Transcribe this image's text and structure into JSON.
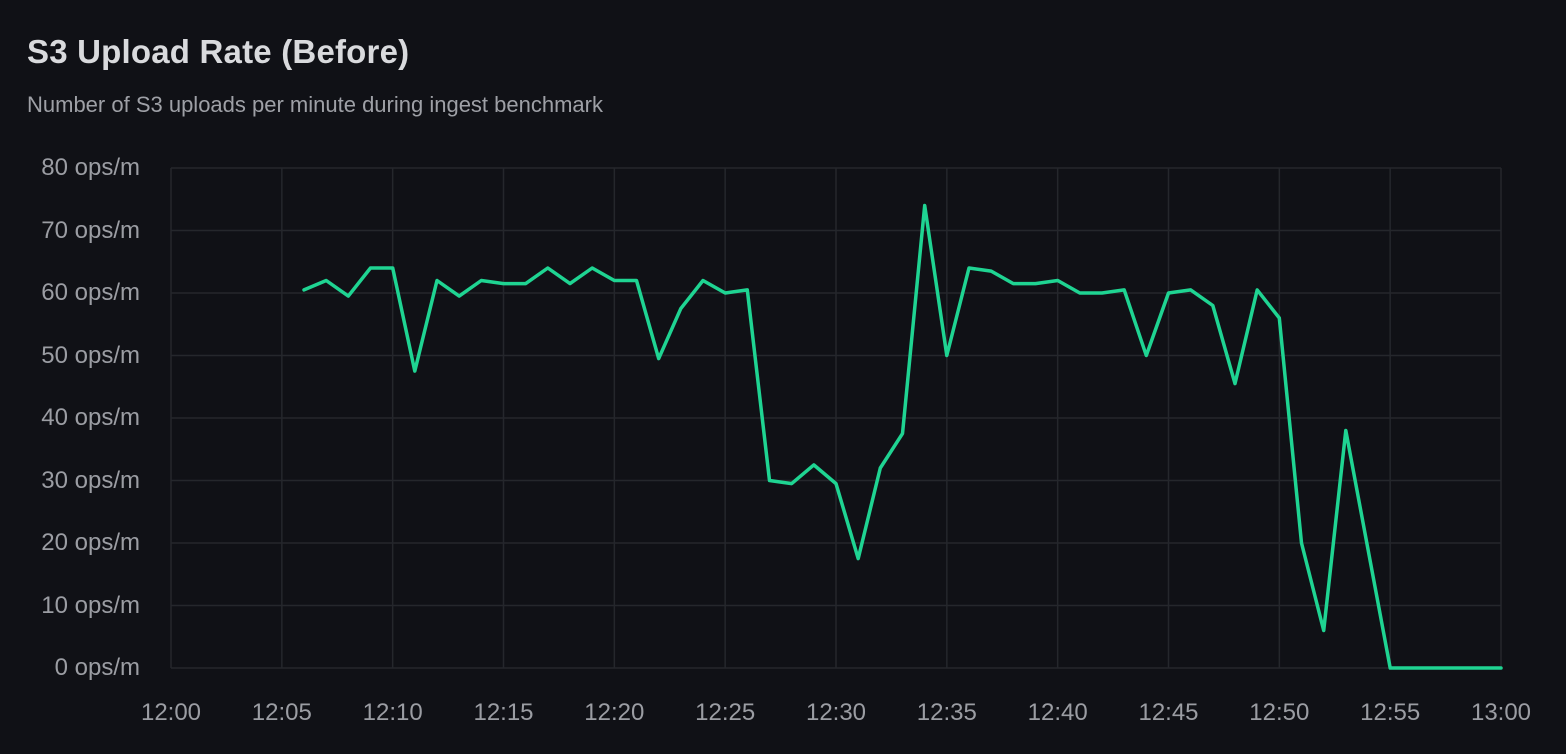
{
  "panel": {
    "title": "S3 Upload Rate (Before)",
    "subtitle": "Number of S3 uploads per minute during ingest benchmark"
  },
  "colors": {
    "background": "#101116",
    "grid": "#25272c",
    "line": "#1fd492",
    "title_text": "#d9dadd",
    "subtitle_text": "#9ea0a6",
    "tick_text": "#9b9da3"
  },
  "chart_data": {
    "type": "line",
    "title": "S3 Upload Rate (Before)",
    "subtitle": "Number of S3 uploads per minute during ingest benchmark",
    "unit": "ops/m",
    "grid": true,
    "legend": "none",
    "ylim": [
      0,
      80
    ],
    "xlim": [
      "12:00",
      "13:00"
    ],
    "y_ticks": [
      "0 ops/m",
      "10 ops/m",
      "20 ops/m",
      "30 ops/m",
      "40 ops/m",
      "50 ops/m",
      "60 ops/m",
      "70 ops/m",
      "80 ops/m"
    ],
    "x_ticks": [
      "12:00",
      "12:05",
      "12:10",
      "12:15",
      "12:20",
      "12:25",
      "12:30",
      "12:35",
      "12:40",
      "12:45",
      "12:50",
      "12:55",
      "13:00"
    ],
    "x": [
      "12:06",
      "12:07",
      "12:08",
      "12:09",
      "12:10",
      "12:11",
      "12:12",
      "12:13",
      "12:14",
      "12:15",
      "12:16",
      "12:17",
      "12:18",
      "12:19",
      "12:20",
      "12:21",
      "12:22",
      "12:23",
      "12:24",
      "12:25",
      "12:26",
      "12:27",
      "12:28",
      "12:29",
      "12:30",
      "12:31",
      "12:32",
      "12:33",
      "12:34",
      "12:35",
      "12:36",
      "12:37",
      "12:38",
      "12:39",
      "12:40",
      "12:41",
      "12:42",
      "12:43",
      "12:44",
      "12:45",
      "12:46",
      "12:47",
      "12:48",
      "12:49",
      "12:50",
      "12:51",
      "12:52",
      "12:53",
      "12:54",
      "12:55",
      "12:56",
      "12:57",
      "12:58",
      "12:59",
      "13:00"
    ],
    "values": [
      60.5,
      62,
      59.5,
      64,
      64,
      47.5,
      62,
      59.5,
      62,
      61.5,
      61.5,
      64,
      61.5,
      64,
      62,
      62,
      49.5,
      57.5,
      62,
      60,
      60.5,
      30,
      29.5,
      32.5,
      29.5,
      17.5,
      32,
      37.5,
      74,
      50,
      64,
      63.5,
      61.5,
      61.5,
      62,
      60,
      60,
      60.5,
      50,
      60,
      60.5,
      58,
      45.5,
      60.5,
      56,
      20,
      6,
      38,
      19,
      0,
      0,
      0,
      0,
      0,
      0
    ]
  }
}
